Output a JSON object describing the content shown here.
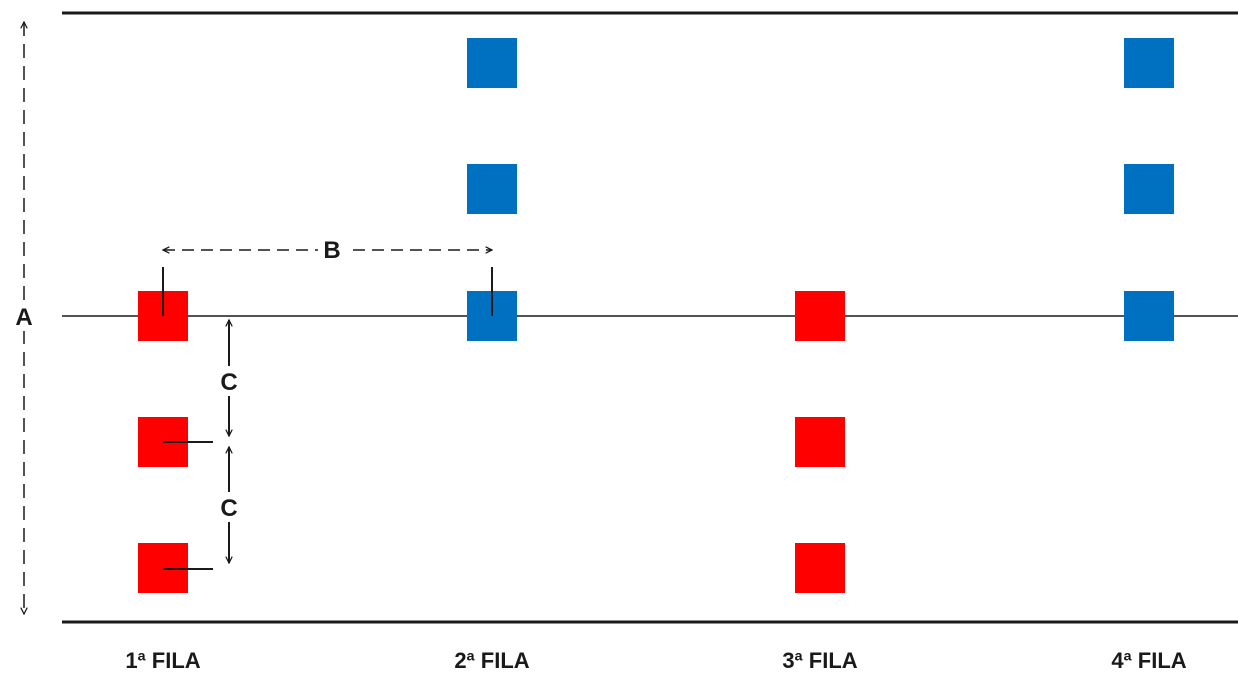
{
  "labels": {
    "a": "A",
    "b": "B",
    "c_upper": "C",
    "c_lower": "C"
  },
  "rows": [
    {
      "label": "1ª FILA",
      "colour": "red",
      "squares": 3
    },
    {
      "label": "2ª FILA",
      "colour": "blue",
      "squares": 3
    },
    {
      "label": "3ª FILA",
      "colour": "red",
      "squares": 3
    },
    {
      "label": "4ª FILA",
      "colour": "blue",
      "squares": 3
    }
  ],
  "colors": {
    "red": "#ff0000",
    "blue": "#0070c0",
    "line": "#1a1a1a"
  }
}
